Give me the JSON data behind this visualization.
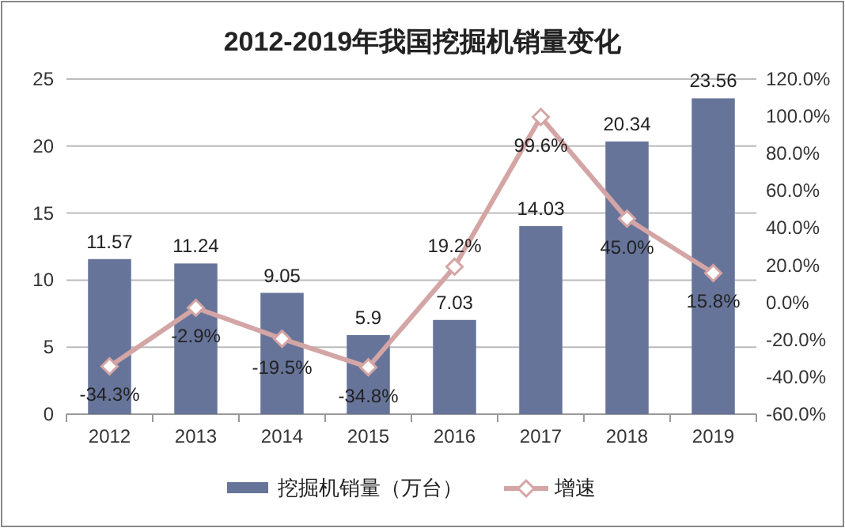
{
  "chart_data": {
    "type": "bar",
    "title": "2012-2019年我国挖掘机销量变化",
    "categories": [
      "2012",
      "2013",
      "2014",
      "2015",
      "2016",
      "2017",
      "2018",
      "2019"
    ],
    "series": [
      {
        "name": "挖掘机销量（万台）",
        "color": "#67749a",
        "values": [
          11.57,
          11.24,
          9.05,
          5.9,
          7.03,
          14.03,
          20.34,
          23.56
        ],
        "value_labels": [
          "11.57",
          "11.24",
          "9.05",
          "5.9",
          "7.03",
          "14.03",
          "20.34",
          "23.56"
        ]
      },
      {
        "name": "增速",
        "type": "line",
        "axis": "y2",
        "color": "#d4a5a5",
        "marker": "diamond",
        "values": [
          -34.3,
          -2.9,
          -19.5,
          -34.8,
          19.2,
          99.6,
          45.0,
          15.8
        ],
        "value_labels": [
          "-34.3%",
          "-2.9%",
          "-19.5%",
          "-34.8%",
          "19.2%",
          "99.6%",
          "45.0%",
          "15.8%"
        ]
      }
    ],
    "ylim": [
      0,
      25
    ],
    "yticks": [
      0,
      5,
      10,
      15,
      20,
      25
    ],
    "y2lim": [
      -60,
      120
    ],
    "y2ticks": [
      {
        "value": -60,
        "label": "-60.0%"
      },
      {
        "value": -40,
        "label": "-40.0%"
      },
      {
        "value": -20,
        "label": "-20.0%"
      },
      {
        "value": 0,
        "label": "0.0%"
      },
      {
        "value": 20,
        "label": "20.0%"
      },
      {
        "value": 40,
        "label": "40.0%"
      },
      {
        "value": 60,
        "label": "60.0%"
      },
      {
        "value": 80,
        "label": "80.0%"
      },
      {
        "value": 100,
        "label": "100.0%"
      },
      {
        "value": 120,
        "label": "120.0%"
      }
    ],
    "grid": "y",
    "legend": "bottom"
  }
}
